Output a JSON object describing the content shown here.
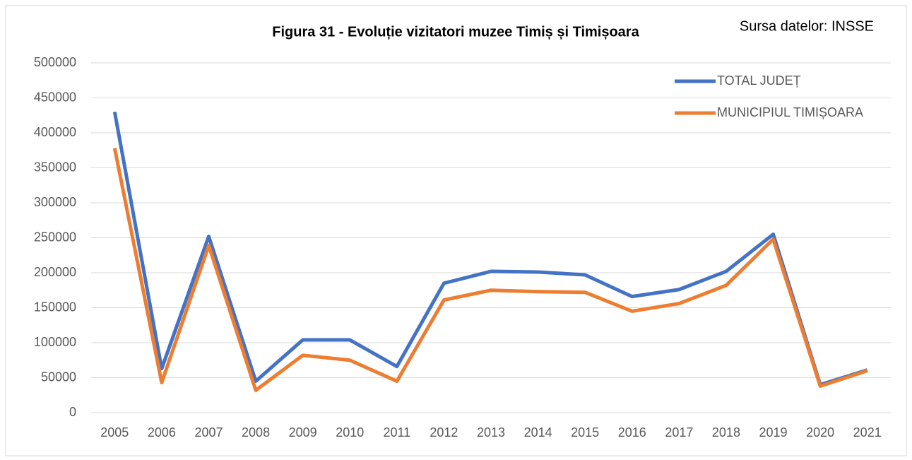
{
  "chart_data": {
    "type": "line",
    "title": "Figura 31 - Evoluție vizitatori muzee Timiș și Timișoara",
    "annotation": "Sursa datelor: INSSE",
    "categories": [
      "2005",
      "2006",
      "2007",
      "2008",
      "2009",
      "2010",
      "2011",
      "2012",
      "2013",
      "2014",
      "2015",
      "2016",
      "2017",
      "2018",
      "2019",
      "2020",
      "2021"
    ],
    "series": [
      {
        "name": "TOTAL JUDEȚ",
        "color": "#4472c4",
        "values": [
          430000,
          63000,
          252000,
          45000,
          104000,
          104000,
          66000,
          185000,
          202000,
          201000,
          197000,
          166000,
          176000,
          202000,
          255000,
          40000,
          61000
        ]
      },
      {
        "name": "MUNICIPIUL TIMIȘOARA",
        "color": "#ed7d31",
        "values": [
          378000,
          43000,
          239000,
          32000,
          82000,
          75000,
          45000,
          161000,
          175000,
          173000,
          172000,
          145000,
          156000,
          182000,
          248000,
          38000,
          60000
        ]
      }
    ],
    "ylim": [
      0,
      500000
    ],
    "yticks": [
      0,
      50000,
      100000,
      150000,
      200000,
      250000,
      300000,
      350000,
      400000,
      450000,
      500000
    ],
    "grid": true,
    "legend": "upper right"
  }
}
